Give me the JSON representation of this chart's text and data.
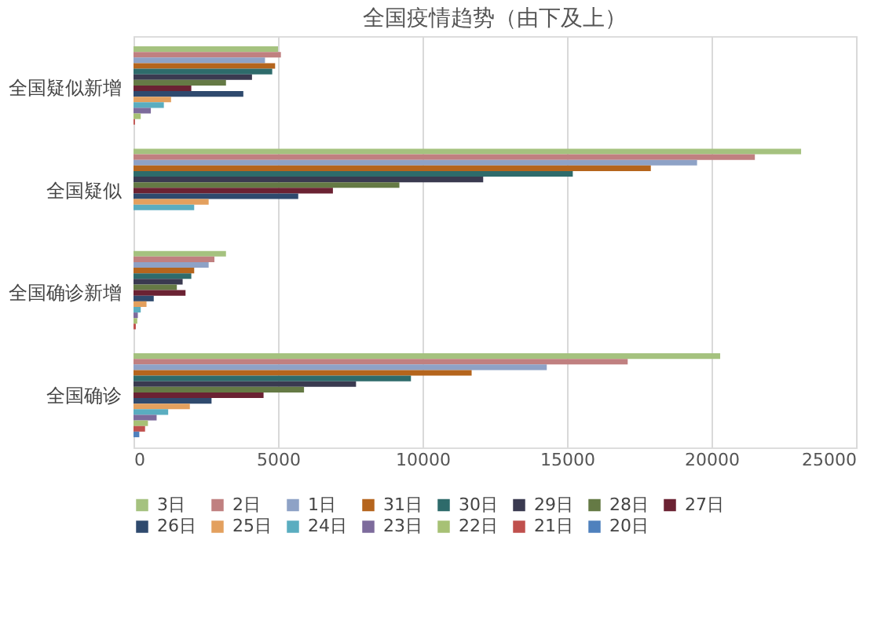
{
  "chart_data": {
    "type": "bar",
    "orientation": "horizontal",
    "title": "全国疫情趋势（由下及上）",
    "categories": [
      "全国疑似新增",
      "全国疑似",
      "全国确诊新增",
      "全国确诊"
    ],
    "xlim": [
      0,
      25000
    ],
    "xticks": [
      0,
      5000,
      10000,
      15000,
      20000,
      25000
    ],
    "grid": "x",
    "legend": "bottom",
    "series": [
      {
        "name": "3日",
        "color": "#a5c27f",
        "values": [
          5000,
          23100,
          3200,
          20300
        ]
      },
      {
        "name": "2日",
        "color": "#c08080",
        "values": [
          5100,
          21500,
          2800,
          17100
        ]
      },
      {
        "name": "1日",
        "color": "#8ea2c6",
        "values": [
          4550,
          19500,
          2600,
          14300
        ]
      },
      {
        "name": "31日",
        "color": "#b5651d",
        "values": [
          4900,
          17900,
          2100,
          11700
        ]
      },
      {
        "name": "30日",
        "color": "#2e6b6b",
        "values": [
          4800,
          15200,
          2000,
          9600
        ]
      },
      {
        "name": "29日",
        "color": "#3a3a50",
        "values": [
          4100,
          12100,
          1700,
          7700
        ]
      },
      {
        "name": "28日",
        "color": "#657a45",
        "values": [
          3200,
          9200,
          1500,
          5900
        ]
      },
      {
        "name": "27日",
        "color": "#6b2233",
        "values": [
          2000,
          6900,
          1800,
          4500
        ]
      },
      {
        "name": "26日",
        "color": "#2f4a6e",
        "values": [
          3800,
          5700,
          700,
          2700
        ]
      },
      {
        "name": "25日",
        "color": "#e3a05e",
        "values": [
          1300,
          2600,
          450,
          1950
        ]
      },
      {
        "name": "24日",
        "color": "#5aadc0",
        "values": [
          1050,
          2100,
          250,
          1200
        ]
      },
      {
        "name": "23日",
        "color": "#7d6b9c",
        "values": [
          600,
          null,
          150,
          800
        ]
      },
      {
        "name": "22日",
        "color": "#a7c175",
        "values": [
          250,
          null,
          130,
          500
        ]
      },
      {
        "name": "21日",
        "color": "#c0504d",
        "values": [
          50,
          null,
          80,
          400
        ]
      },
      {
        "name": "20日",
        "color": "#4f81bd",
        "values": [
          null,
          null,
          null,
          200
        ]
      }
    ]
  }
}
